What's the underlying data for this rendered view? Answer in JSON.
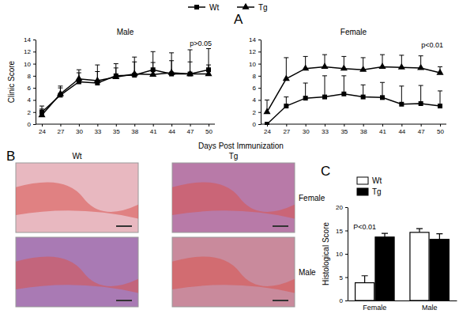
{
  "chart_data": [
    {
      "type": "line",
      "panel": "A",
      "title": "Male",
      "annotation": "p>0.05",
      "y_label": "Clinic Score",
      "x_label": "Days Post Immunization",
      "legend": "top",
      "categories": [
        "24",
        "27",
        "30",
        "33",
        "35",
        "38",
        "41",
        "44",
        "47",
        "50"
      ],
      "ylim": [
        0,
        14
      ],
      "yticks": [
        0,
        2,
        4,
        6,
        8,
        10,
        12,
        14
      ],
      "series": [
        {
          "name": "Wt",
          "color": "#000000",
          "marker": "square",
          "values": [
            2,
            4.8,
            7,
            6.8,
            8,
            8.1,
            9,
            8.3,
            8.3,
            9
          ],
          "errors": [
            1,
            1.5,
            1.5,
            3,
            2,
            3,
            3,
            3.5,
            4,
            3.5
          ]
        },
        {
          "name": "Tg",
          "color": "#000000",
          "marker": "triangle",
          "values": [
            1.5,
            5,
            7.5,
            7.2,
            7.8,
            8.3,
            8.2,
            8.5,
            8.3,
            8.3
          ],
          "errors": [
            1,
            1,
            1.5,
            1.5,
            1.5,
            2,
            2,
            2,
            2,
            1.5
          ]
        }
      ]
    },
    {
      "type": "line",
      "title": "Female",
      "annotation": "p<0.01",
      "categories": [
        "24",
        "27",
        "30",
        "33",
        "35",
        "38",
        "41",
        "44",
        "47",
        "50"
      ],
      "ylim": [
        0,
        14
      ],
      "yticks": [
        0,
        2,
        4,
        6,
        8,
        10,
        12,
        14
      ],
      "series": [
        {
          "color": "#000000",
          "marker": "square",
          "values": [
            0,
            3,
            4.3,
            4.5,
            5,
            4.5,
            4.4,
            3.3,
            3.4,
            3
          ],
          "errors": [
            0,
            1.5,
            2.5,
            3.5,
            3,
            2,
            2.5,
            3,
            3,
            2.5
          ]
        },
        {
          "color": "#000000",
          "marker": "triangle",
          "values": [
            2,
            7.5,
            9.2,
            9.5,
            9.2,
            9,
            9.5,
            9.4,
            9.3,
            8.5
          ],
          "errors": [
            2,
            3.5,
            2,
            2,
            2,
            2,
            2,
            2,
            2,
            1
          ]
        }
      ]
    },
    {
      "type": "bar",
      "panel": "C",
      "annotation": "P<0.01",
      "y_label": "Histological Score",
      "legend": "top",
      "categories": [
        "Female",
        "Male"
      ],
      "ylim": [
        0,
        20
      ],
      "yticks": [
        0,
        5,
        10,
        15,
        20
      ],
      "series": [
        {
          "name": "Wt",
          "color": "#ffffff",
          "values": [
            3.8,
            14.6
          ],
          "errors": [
            1.5,
            0.8
          ]
        },
        {
          "name": "Tg",
          "color": "#000000",
          "values": [
            13.6,
            13.1
          ],
          "errors": [
            0.8,
            1.2
          ]
        }
      ]
    }
  ],
  "panel_b": {
    "panel": "B",
    "columns": [
      "Wt",
      "Tg"
    ],
    "rows": [
      "Female",
      "Male"
    ]
  }
}
